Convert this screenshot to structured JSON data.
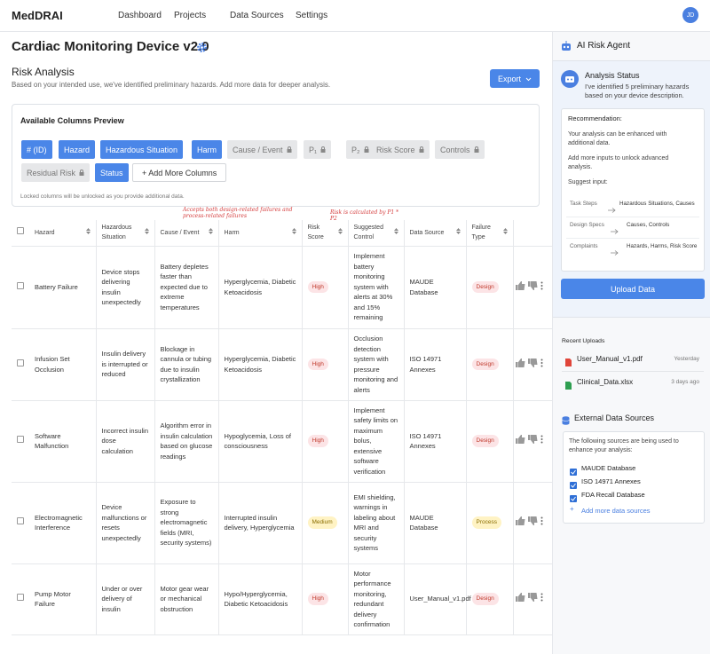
{
  "nav": {
    "brand": "MedDRAI",
    "links": [
      "Dashboard",
      "Projects",
      "Data Sources",
      "Settings"
    ],
    "avatar": "JD"
  },
  "main": {
    "title": "Cardiac Monitoring Device v2.0",
    "section_title": "Risk Analysis",
    "section_subtitle": "Based on your intended use, we've identified preliminary hazards. Add more data for deeper analysis.",
    "export_button": "Export",
    "columns_preview": {
      "title": "Available Columns Preview",
      "chips": [
        {
          "label": "# (ID)",
          "state": "active"
        },
        {
          "label": "Hazard",
          "state": "active"
        },
        {
          "label": "Hazardous Situation",
          "state": "active"
        },
        {
          "label": "Harm",
          "state": "active"
        },
        {
          "label": "Cause / Event",
          "state": "locked"
        },
        {
          "label": "P₁",
          "state": "locked"
        },
        {
          "label": "P₂",
          "state": "locked"
        },
        {
          "label": "Risk Score",
          "state": "locked"
        },
        {
          "label": "Controls",
          "state": "locked"
        },
        {
          "label": "Residual Risk",
          "state": "locked"
        },
        {
          "label": "Status",
          "state": "active"
        },
        {
          "label": "+ Add More Columns",
          "state": "button"
        }
      ],
      "note": "Locked columns will be unlocked as you provide additional data."
    },
    "annotations": [
      "Accepts both design-related failures and process-related failures",
      "Risk is calculated by P1 * P2"
    ],
    "table": {
      "headers": [
        "Hazard",
        "Hazardous Situation",
        "Cause / Event",
        "Harm",
        "Risk Score",
        "Suggested Control",
        "Data Source",
        "Failure Type"
      ],
      "rows": [
        {
          "cells": [
            "Battery Failure",
            "Device stops delivering insulin unexpectedly",
            "Battery depletes faster than expected due to extreme temperatures",
            "Hyperglycemia, Diabetic Ketoacidosis",
            "High",
            "Implement battery monitoring system with alerts at 30% and 15% remaining",
            "MAUDE Database",
            "Design"
          ],
          "risk_colors": [
            "#fce4e6",
            "#c0392b"
          ],
          "type_colors": [
            "#fce4e6",
            "#c0392b"
          ]
        },
        {
          "cells": [
            "Infusion Set Occlusion",
            "Insulin delivery is interrupted or reduced",
            "Blockage in cannula or tubing due to insulin crystallization",
            "Hyperglycemia, Diabetic Ketoacidosis",
            "High",
            "Occlusion detection system with pressure monitoring and alerts",
            "ISO 14971 Annexes",
            "Design"
          ],
          "risk_colors": [
            "#fce4e6",
            "#c0392b"
          ],
          "type_colors": [
            "#fce4e6",
            "#c0392b"
          ]
        },
        {
          "cells": [
            "Software Malfunction",
            "Incorrect insulin dose calculation",
            "Algorithm error in insulin calculation based on glucose readings",
            "Hypoglycemia, Loss of consciousness",
            "High",
            "Implement safety limits on maximum bolus, extensive software verification",
            "ISO 14971 Annexes",
            "Design"
          ],
          "risk_colors": [
            "#fce4e6",
            "#c0392b"
          ],
          "type_colors": [
            "#fce4e6",
            "#c0392b"
          ]
        },
        {
          "cells": [
            "Electromagnetic Interference",
            "Device malfunctions or resets unexpectedly",
            "Exposure to strong electromagnetic fields (MRI, security systems)",
            "Interrupted insulin delivery, Hyperglycemia",
            "Medium",
            "EMI shielding, warnings in labeling about MRI and security systems",
            "MAUDE Database",
            "Process"
          ],
          "risk_colors": [
            "#fff3c4",
            "#8a6d00"
          ],
          "type_colors": [
            "#fff3c4",
            "#8a6d00"
          ]
        },
        {
          "cells": [
            "Pump Motor Failure",
            "Under or over delivery of insulin",
            "Motor gear wear or mechanical obstruction",
            "Hypo/Hyperglycemia, Diabetic Ketoacidosis",
            "High",
            "Motor performance monitoring, redundant delivery confirmation",
            "User_Manual_v1.pdf",
            "Design"
          ],
          "risk_colors": [
            "#fce4e6",
            "#c0392b"
          ],
          "type_colors": [
            "#fce4e6",
            "#c0392b"
          ]
        }
      ]
    }
  },
  "sidebar": {
    "title": "AI Risk Agent",
    "status_title": "Analysis Status",
    "status_text": "I've identified 5 preliminary hazards based on your device description.",
    "recommendation": {
      "title": "Recommendation:",
      "paragraphs": [
        "Your analysis can be enhanced with additional data.",
        "Add more inputs to unlock advanced analysis.",
        "Suggest input:"
      ],
      "mappings": [
        {
          "input": "Task Steps",
          "unlocks": "Hazardous Situations, Causes"
        },
        {
          "input": "Design Specs",
          "unlocks": "Causes, Controls"
        },
        {
          "input": "Complaints",
          "unlocks": "Hazards, Harms, Risk Score"
        }
      ]
    },
    "upload_button": "Upload Data",
    "recent_title": "Recent Uploads",
    "recent_uploads": [
      {
        "name": "User_Manual_v1.pdf",
        "time": "Yesterday",
        "icon_color": "#e0453a"
      },
      {
        "name": "Clinical_Data.xlsx",
        "time": "3 days ago",
        "icon_color": "#2e9e50"
      }
    ],
    "external_title": "External Data Sources",
    "external_text": "The following sources are being used to enhance your analysis:",
    "sources": [
      "MAUDE Database",
      "ISO 14971 Annexes",
      "FDA Recall Database"
    ],
    "add_sources": "Add more data sources"
  }
}
